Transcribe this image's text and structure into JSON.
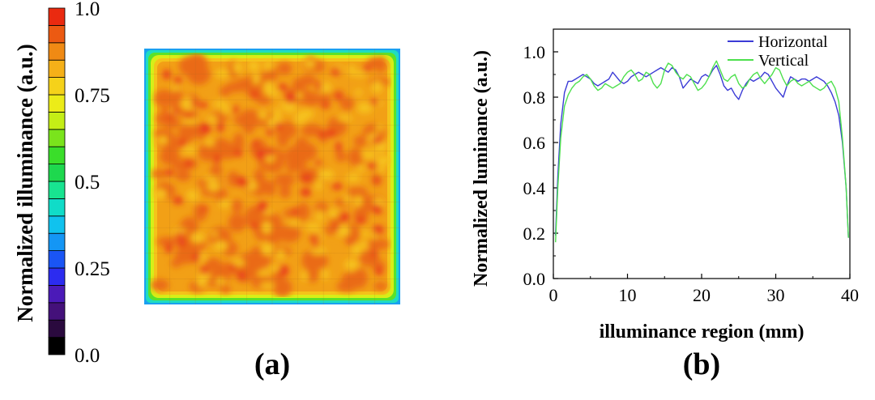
{
  "panel_a": {
    "label": "(a)",
    "colorbar": {
      "ylabel": "Normalized illuminance (a.u.)",
      "tick_labels": [
        "1.0",
        "0.75",
        "0.5",
        "0.25",
        "0.0"
      ],
      "tick_values": [
        1.0,
        0.75,
        0.5,
        0.25,
        0.0
      ],
      "range": [
        0,
        1
      ],
      "levels": 20,
      "colors": [
        "#000000",
        "#2a0a3e",
        "#44117a",
        "#4b1ab8",
        "#2c2cf0",
        "#1a55f5",
        "#1496f5",
        "#10c2ee",
        "#10dcc8",
        "#18e490",
        "#1ed84e",
        "#3ade2a",
        "#7ae41c",
        "#c4ee16",
        "#ecec18",
        "#f5d21a",
        "#f5b018",
        "#f08a14",
        "#ec5a12",
        "#ea2a10"
      ]
    },
    "heatmap": {
      "type": "heatmap",
      "description_value_center": 0.87,
      "edge_falloff": true,
      "cmap_range": [
        0,
        1
      ]
    }
  },
  "chart_data": {
    "type": "line",
    "label": "(b)",
    "xlabel": "illuminance region (mm)",
    "ylabel": "Normalized luminance (a.u.)",
    "xlim": [
      0,
      40
    ],
    "ylim": [
      0,
      1.1
    ],
    "xticks": [
      0,
      10,
      20,
      30,
      40
    ],
    "yticks": [
      0.0,
      0.2,
      0.4,
      0.6,
      0.8,
      1.0
    ],
    "legend_position": "top-right",
    "series": [
      {
        "name": "Horizontal",
        "color": "#3b3bd6",
        "x": [
          0.3,
          0.6,
          1,
          1.5,
          2,
          2.5,
          3,
          3.5,
          4,
          4.5,
          5,
          5.5,
          6,
          6.5,
          7,
          7.5,
          8,
          8.5,
          9,
          9.5,
          10,
          10.5,
          11,
          11.5,
          12,
          12.5,
          13,
          13.5,
          14,
          14.5,
          15,
          15.5,
          16,
          16.5,
          17,
          17.5,
          18,
          18.5,
          19,
          19.5,
          20,
          20.5,
          21,
          21.5,
          22,
          22.5,
          23,
          23.5,
          24,
          24.5,
          25,
          25.5,
          26,
          26.5,
          27,
          27.5,
          28,
          28.5,
          29,
          29.5,
          30,
          30.5,
          31,
          31.5,
          32,
          32.5,
          33,
          33.5,
          34,
          34.5,
          35,
          35.5,
          36,
          36.5,
          37,
          37.5,
          38,
          38.5,
          39,
          39.5,
          39.8
        ],
        "y": [
          0.19,
          0.45,
          0.68,
          0.82,
          0.87,
          0.87,
          0.88,
          0.89,
          0.9,
          0.89,
          0.88,
          0.86,
          0.85,
          0.86,
          0.87,
          0.88,
          0.91,
          0.89,
          0.87,
          0.86,
          0.87,
          0.89,
          0.9,
          0.91,
          0.9,
          0.89,
          0.9,
          0.91,
          0.92,
          0.93,
          0.92,
          0.91,
          0.93,
          0.92,
          0.89,
          0.84,
          0.86,
          0.88,
          0.87,
          0.86,
          0.89,
          0.9,
          0.89,
          0.92,
          0.94,
          0.9,
          0.85,
          0.83,
          0.84,
          0.81,
          0.79,
          0.83,
          0.86,
          0.88,
          0.87,
          0.88,
          0.89,
          0.91,
          0.9,
          0.87,
          0.84,
          0.82,
          0.8,
          0.85,
          0.89,
          0.88,
          0.87,
          0.88,
          0.88,
          0.87,
          0.88,
          0.89,
          0.88,
          0.87,
          0.85,
          0.82,
          0.78,
          0.72,
          0.6,
          0.4,
          0.18
        ]
      },
      {
        "name": "Vertical",
        "color": "#4de04d",
        "x": [
          0.3,
          0.6,
          1,
          1.5,
          2,
          2.5,
          3,
          3.5,
          4,
          4.5,
          5,
          5.5,
          6,
          6.5,
          7,
          7.5,
          8,
          8.5,
          9,
          9.5,
          10,
          10.5,
          11,
          11.5,
          12,
          12.5,
          13,
          13.5,
          14,
          14.5,
          15,
          15.5,
          16,
          16.5,
          17,
          17.5,
          18,
          18.5,
          19,
          19.5,
          20,
          20.5,
          21,
          21.5,
          22,
          22.5,
          23,
          23.5,
          24,
          24.5,
          25,
          25.5,
          26,
          26.5,
          27,
          27.5,
          28,
          28.5,
          29,
          29.5,
          30,
          30.5,
          31,
          31.5,
          32,
          32.5,
          33,
          33.5,
          34,
          34.5,
          35,
          35.5,
          36,
          36.5,
          37,
          37.5,
          38,
          38.5,
          39,
          39.5,
          39.8
        ],
        "y": [
          0.16,
          0.4,
          0.62,
          0.76,
          0.81,
          0.84,
          0.86,
          0.87,
          0.89,
          0.9,
          0.88,
          0.85,
          0.83,
          0.84,
          0.86,
          0.85,
          0.84,
          0.85,
          0.86,
          0.89,
          0.91,
          0.92,
          0.9,
          0.87,
          0.88,
          0.91,
          0.9,
          0.86,
          0.84,
          0.86,
          0.92,
          0.95,
          0.94,
          0.91,
          0.89,
          0.88,
          0.9,
          0.89,
          0.86,
          0.83,
          0.84,
          0.86,
          0.89,
          0.93,
          0.96,
          0.92,
          0.88,
          0.87,
          0.89,
          0.9,
          0.86,
          0.84,
          0.85,
          0.88,
          0.9,
          0.91,
          0.88,
          0.86,
          0.88,
          0.9,
          0.93,
          0.92,
          0.88,
          0.85,
          0.87,
          0.88,
          0.86,
          0.85,
          0.86,
          0.87,
          0.85,
          0.84,
          0.83,
          0.84,
          0.86,
          0.87,
          0.84,
          0.78,
          0.62,
          0.4,
          0.18
        ]
      }
    ]
  }
}
